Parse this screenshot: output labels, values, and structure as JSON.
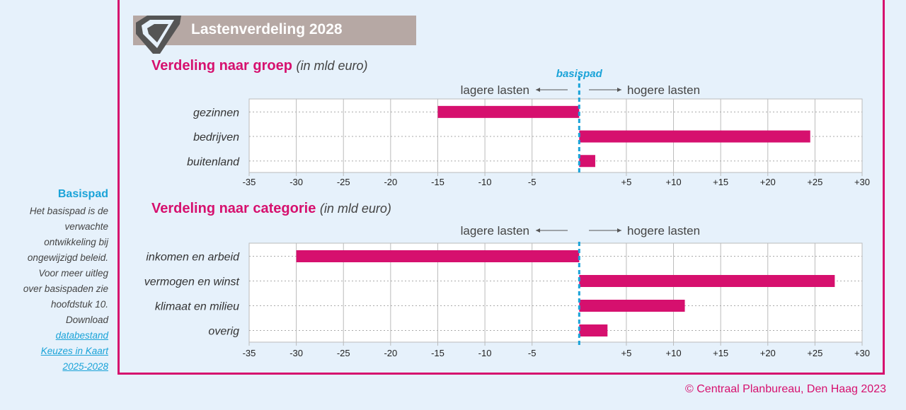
{
  "header": {
    "title": "Lastenverdeling 2028"
  },
  "sidebar": {
    "title": "Basispad",
    "text_lines": [
      "Het basispad is de",
      "verwachte",
      "ontwikkeling bij",
      "ongewijzigd beleid.",
      "Voor meer uitleg",
      "over basispaden zie",
      "hoofdstuk 10.",
      "Download"
    ],
    "link_lines": [
      "databestand",
      "Keuzes in Kaart",
      "2025-2028"
    ]
  },
  "copyright": "© Centraal Planbureau, Den Haag 2023",
  "colors": {
    "accent": "#d6106e",
    "basispad": "#1aa3d8",
    "grid": "#bbbbbb"
  },
  "chart_data": [
    {
      "type": "bar",
      "orientation": "horizontal",
      "title": "Verdeling naar groep",
      "unit": "(in mld euro)",
      "categories": [
        "gezinnen",
        "bedrijven",
        "buitenland"
      ],
      "values": [
        -15,
        24.5,
        1.7
      ],
      "xlim": [
        -35,
        30
      ],
      "ticks": [
        "-35",
        "-30",
        "-25",
        "-20",
        "-15",
        "-10",
        "-5",
        "+5",
        "+10",
        "+15",
        "+20",
        "+25",
        "+30"
      ],
      "tick_values": [
        -35,
        -30,
        -25,
        -20,
        -15,
        -10,
        -5,
        5,
        10,
        15,
        20,
        25,
        30
      ],
      "reference_label": "basispad",
      "left_label": "lagere lasten",
      "right_label": "hogere lasten"
    },
    {
      "type": "bar",
      "orientation": "horizontal",
      "title": "Verdeling naar categorie",
      "unit": "(in mld euro)",
      "categories": [
        "inkomen en arbeid",
        "vermogen en winst",
        "klimaat en milieu",
        "overig"
      ],
      "values": [
        -30,
        27.1,
        11.2,
        3
      ],
      "xlim": [
        -35,
        30
      ],
      "ticks": [
        "-35",
        "-30",
        "-25",
        "-20",
        "-15",
        "-10",
        "-5",
        "+5",
        "+10",
        "+15",
        "+20",
        "+25",
        "+30"
      ],
      "tick_values": [
        -35,
        -30,
        -25,
        -20,
        -15,
        -10,
        -5,
        5,
        10,
        15,
        20,
        25,
        30
      ],
      "left_label": "lagere lasten",
      "right_label": "hogere lasten"
    }
  ]
}
